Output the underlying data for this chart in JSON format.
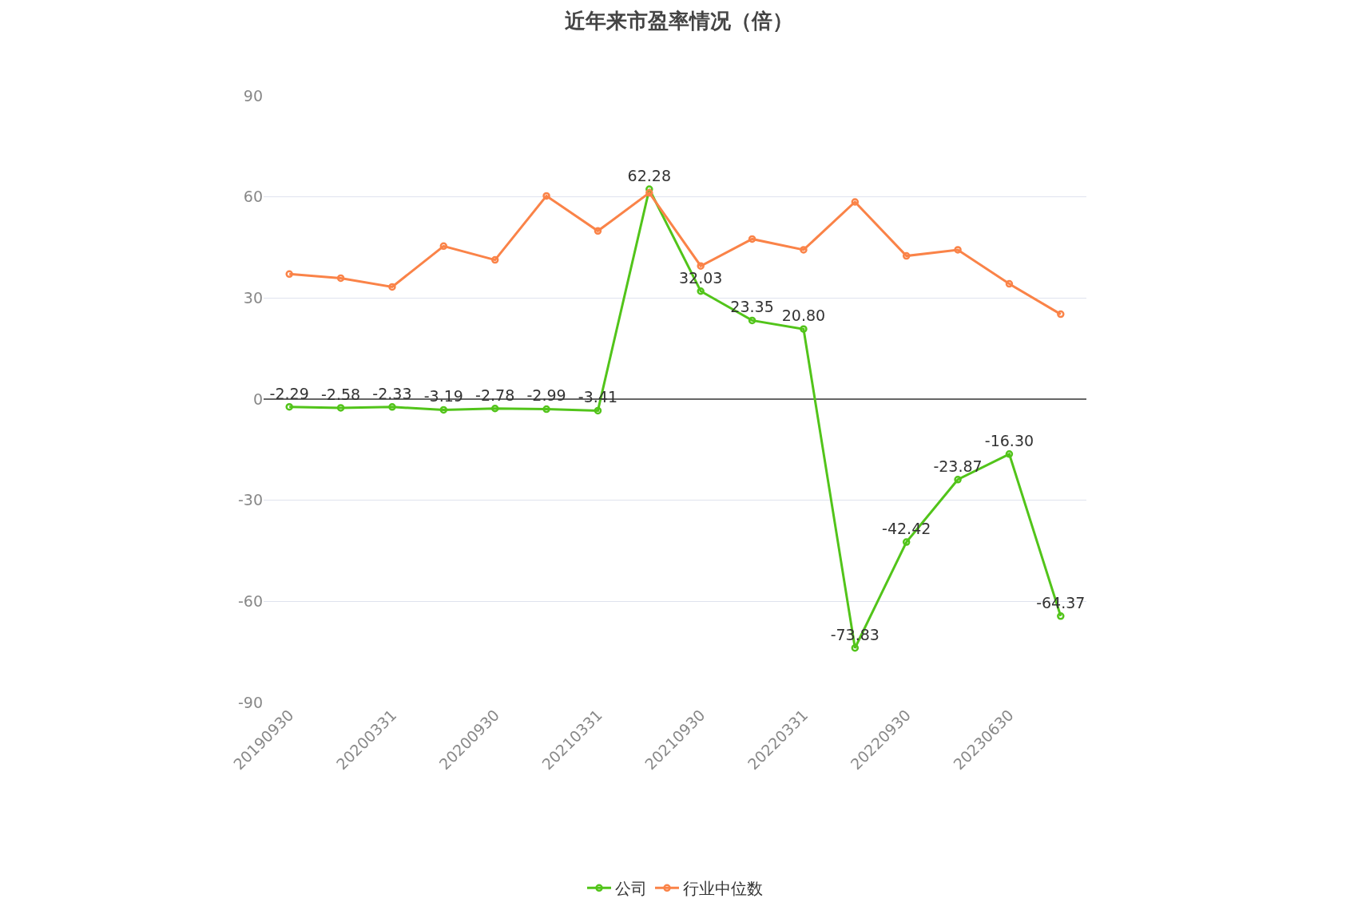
{
  "chart_data": {
    "type": "line",
    "title": "近年来市盈率情况（倍）",
    "categories": [
      "20190930",
      null,
      "20200331",
      null,
      "20200930",
      null,
      "20210331",
      null,
      "20210930",
      null,
      "20220331",
      null,
      "20220930",
      null,
      "20230630",
      null
    ],
    "series": [
      {
        "name": "公司",
        "color": "#52c41a",
        "values": [
          -2.29,
          -2.58,
          -2.33,
          -3.19,
          -2.78,
          -2.99,
          -3.41,
          62.28,
          32.03,
          23.35,
          20.8,
          -73.83,
          -42.42,
          -23.87,
          -16.3,
          -64.37
        ],
        "value_labels": [
          "-2.29",
          "-2.58",
          "-2.33",
          "-3.19",
          "-2.78",
          "-2.99",
          "-3.41",
          "62.28",
          "32.03",
          "23.35",
          "20.80",
          "-73.83",
          "-42.42",
          "-23.87",
          "-16.30",
          "-64.37"
        ]
      },
      {
        "name": "行业中位数",
        "color": "#fa8348",
        "values": [
          37.1,
          35.9,
          33.3,
          45.4,
          41.3,
          60.3,
          49.9,
          61.2,
          39.5,
          47.5,
          44.3,
          58.5,
          42.5,
          44.3,
          34.2,
          25.2
        ]
      }
    ],
    "ylim": [
      -90,
      90
    ],
    "yticks": [
      -90,
      -60,
      -30,
      0,
      30,
      60,
      90
    ],
    "grid": "y",
    "legend": "bottom",
    "marker": "circle",
    "line_style": "solid"
  }
}
